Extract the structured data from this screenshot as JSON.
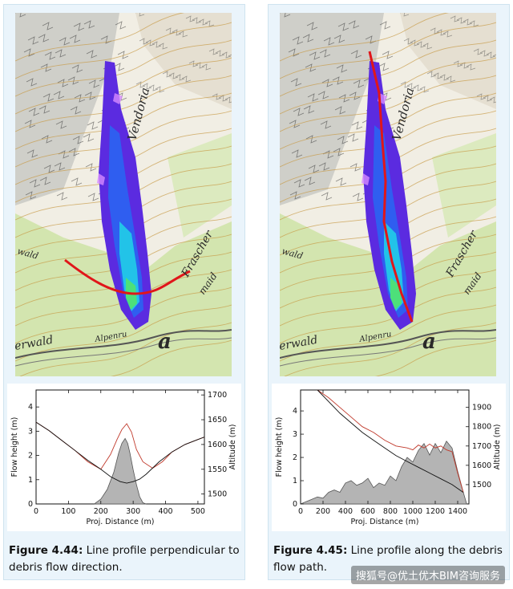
{
  "figures": [
    {
      "id": "fig-4-44",
      "caption_label": "Figure 4.44:",
      "caption_text": "Line profile perpendicular to debris flow direction.",
      "map_labels": [
        "Vendoria",
        "Frascher",
        "maid",
        "wald",
        "erwald",
        "Alpenru",
        "a"
      ],
      "chart_data": {
        "type": "line",
        "xlabel": "Proj. Distance (m)",
        "ylabel": "Flow height (m)",
        "ylabel_right": "Altitude (m)",
        "xlim": [
          0,
          520
        ],
        "ylim": [
          0,
          4.7
        ],
        "ylim_right": [
          1480,
          1710
        ],
        "x_ticks": [
          0,
          100,
          200,
          300,
          400,
          500
        ],
        "y_ticks": [
          0,
          1,
          2,
          3,
          4
        ],
        "y_ticks_right": [
          1500,
          1550,
          1600,
          1650,
          1700
        ],
        "series": [
          {
            "role": "flow_height",
            "style": "filled-area",
            "color": "#b4b4b4",
            "x": [
              180,
              200,
              220,
              240,
              255,
              265,
              275,
              283,
              290,
              300,
              310,
              320,
              330,
              340
            ],
            "y": [
              0,
              0.2,
              0.6,
              1.3,
              2.1,
              2.5,
              2.7,
              2.5,
              2.1,
              1.4,
              0.8,
              0.3,
              0.05,
              0
            ]
          },
          {
            "role": "altitude",
            "style": "line",
            "color": "#c0392b",
            "axis": "right",
            "x": [
              0,
              40,
              80,
              120,
              160,
              200,
              230,
              250,
              265,
              280,
              295,
              310,
              330,
              360,
              390,
              420,
              460,
              500,
              520
            ],
            "y": [
              1645,
              1628,
              1608,
              1588,
              1565,
              1550,
              1580,
              1610,
              1630,
              1642,
              1625,
              1590,
              1565,
              1552,
              1565,
              1585,
              1600,
              1610,
              1615
            ]
          },
          {
            "role": "terrain",
            "style": "line",
            "color": "#111111",
            "axis": "right",
            "x": [
              0,
              40,
              80,
              120,
              160,
              200,
              230,
              260,
              280,
              300,
              320,
              340,
              380,
              420,
              460,
              500,
              520
            ],
            "y": [
              1645,
              1628,
              1608,
              1588,
              1568,
              1550,
              1535,
              1525,
              1522,
              1525,
              1530,
              1540,
              1565,
              1585,
              1600,
              1610,
              1615
            ]
          }
        ]
      }
    },
    {
      "id": "fig-4-45",
      "caption_label": "Figure 4.45:",
      "caption_text": "Line profile along the debris flow path.",
      "map_labels": [
        "Vendoria",
        "Frascher",
        "maid",
        "wald",
        "erwald",
        "Alpenru",
        "a"
      ],
      "chart_data": {
        "type": "line",
        "xlabel": "Proj. Distance (m)",
        "ylabel": "Flow height (m)",
        "ylabel_right": "Altitude (m)",
        "xlim": [
          0,
          1500
        ],
        "ylim": [
          0,
          4.9
        ],
        "ylim_right": [
          1400,
          1990
        ],
        "x_ticks": [
          0,
          200,
          400,
          600,
          800,
          1000,
          1200,
          1400
        ],
        "y_ticks": [
          0,
          1,
          2,
          3,
          4
        ],
        "y_ticks_right": [
          1500,
          1600,
          1700,
          1800,
          1900
        ],
        "series": [
          {
            "role": "flow_height",
            "style": "filled-area",
            "color": "#b4b4b4",
            "x": [
              0,
              50,
              100,
              150,
              200,
              250,
              300,
              350,
              400,
              450,
              500,
              550,
              600,
              650,
              700,
              750,
              800,
              850,
              900,
              950,
              1000,
              1050,
              1100,
              1150,
              1200,
              1250,
              1300,
              1350,
              1400,
              1450,
              1480
            ],
            "y": [
              0,
              0.1,
              0.2,
              0.3,
              0.25,
              0.5,
              0.6,
              0.5,
              0.9,
              1.0,
              0.8,
              0.9,
              1.1,
              0.7,
              0.9,
              0.8,
              1.2,
              1.0,
              1.6,
              2.0,
              1.8,
              2.3,
              2.6,
              2.1,
              2.6,
              2.2,
              2.7,
              2.4,
              1.4,
              0.5,
              0
            ]
          },
          {
            "role": "altitude",
            "style": "line",
            "color": "#c0392b",
            "axis": "right",
            "x": [
              150,
              250,
              350,
              450,
              550,
              650,
              750,
              850,
              950,
              1000,
              1050,
              1100,
              1150,
              1200,
              1250,
              1300,
              1350,
              1400,
              1450
            ],
            "y": [
              1990,
              1950,
              1900,
              1850,
              1800,
              1770,
              1730,
              1700,
              1690,
              1680,
              1705,
              1690,
              1710,
              1690,
              1700,
              1680,
              1670,
              1560,
              1460
            ]
          },
          {
            "role": "terrain",
            "style": "line",
            "color": "#111111",
            "axis": "right",
            "x": [
              150,
              250,
              350,
              450,
              550,
              650,
              750,
              850,
              950,
              1050,
              1150,
              1250,
              1350,
              1450
            ],
            "y": [
              1990,
              1930,
              1870,
              1820,
              1770,
              1730,
              1690,
              1650,
              1620,
              1590,
              1560,
              1530,
              1500,
              1460
            ]
          }
        ]
      }
    }
  ],
  "watermark": "搜狐号@优土优木BIM咨询服务"
}
